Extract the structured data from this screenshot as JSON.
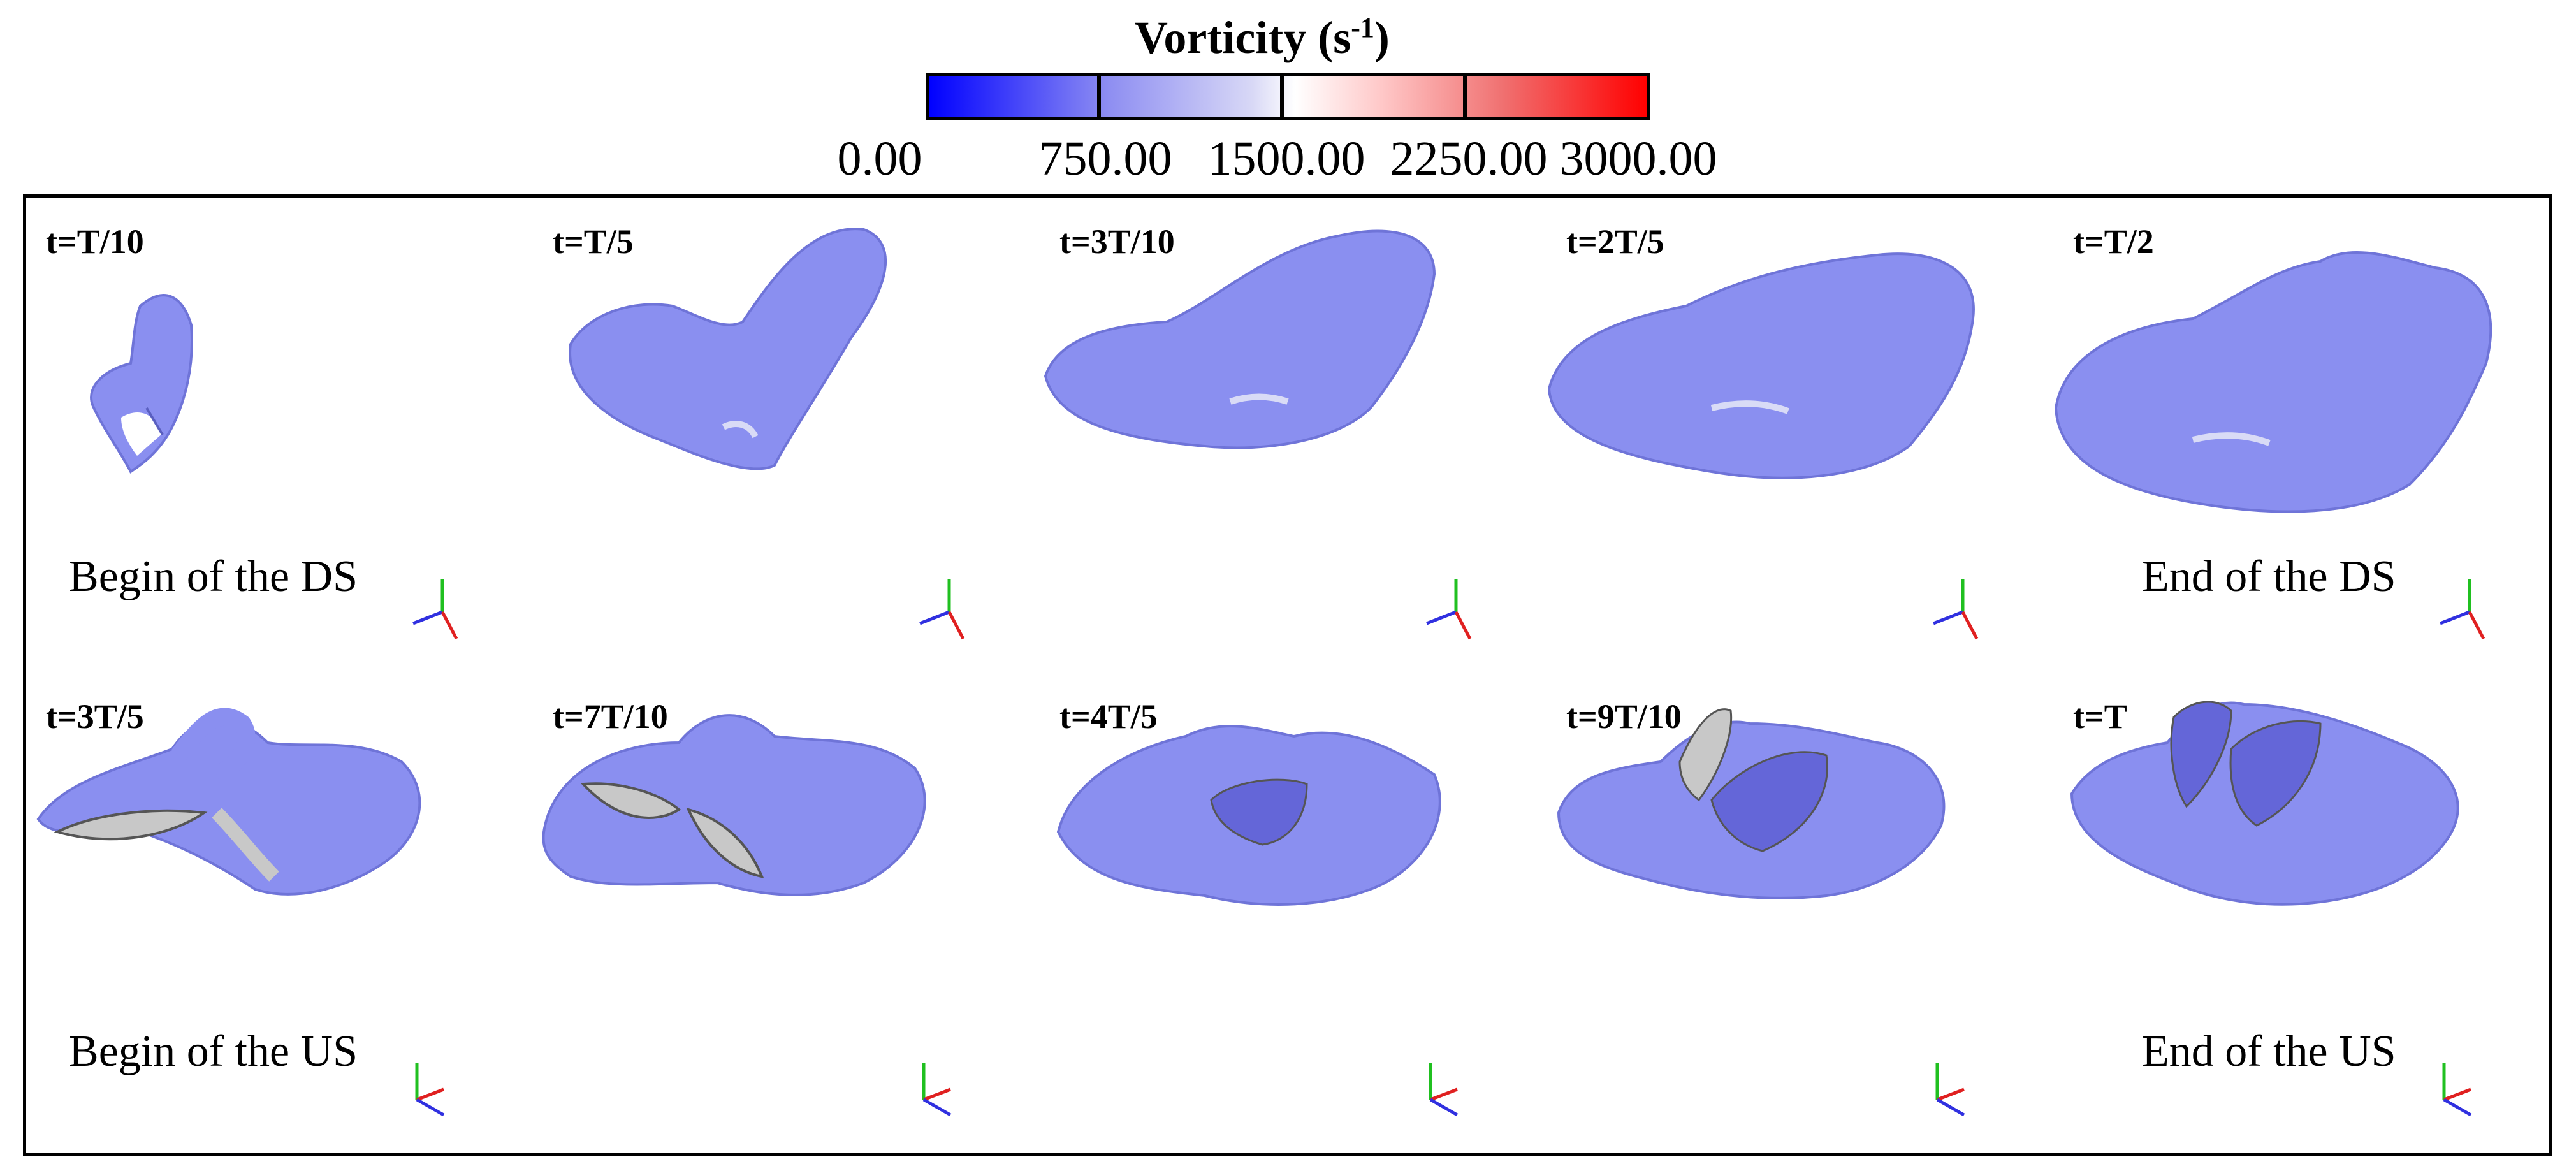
{
  "colorbar": {
    "title": "Vorticity (s",
    "title_sup": "-1",
    "title_close": ")",
    "tick_labels": [
      "0.00",
      "750.00",
      "1500.00",
      "2250.00",
      "3000.00"
    ],
    "range": [
      0,
      3000
    ],
    "colors": {
      "low": "#0000ff",
      "mid": "#ffffff",
      "high": "#ff0000"
    }
  },
  "iso_surface_color": "#8a8ff0",
  "panels": [
    {
      "time": "t=T/10",
      "caption": "Begin of the DS",
      "row": "DS"
    },
    {
      "time": "t=T/5",
      "caption": "",
      "row": "DS"
    },
    {
      "time": "t=3T/10",
      "caption": "",
      "row": "DS"
    },
    {
      "time": "t=2T/5",
      "caption": "",
      "row": "DS"
    },
    {
      "time": "t=T/2",
      "caption": "End of the DS",
      "row": "DS"
    },
    {
      "time": "t=3T/5",
      "caption": "Begin of the US",
      "row": "US"
    },
    {
      "time": "t=7T/10",
      "caption": "",
      "row": "US"
    },
    {
      "time": "t=4T/5",
      "caption": "",
      "row": "US"
    },
    {
      "time": "t=9T/10",
      "caption": "",
      "row": "US"
    },
    {
      "time": "t=T",
      "caption": "End of the US",
      "row": "US"
    }
  ]
}
